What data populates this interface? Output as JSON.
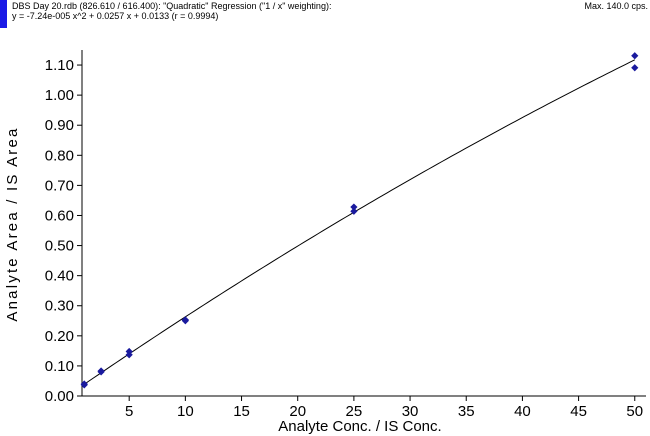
{
  "header": {
    "line1": "DBS Day 20.rdb (826.610 / 616.400): \"Quadratic\" Regression (\"1 / x\" weighting):",
    "line2": "y = -7.24e-005 x^2 + 0.0257 x + 0.0133 (r = 0.9994)",
    "max_label": "Max. 140.0 cps."
  },
  "colors": {
    "accent": "#1a1ae6",
    "points": "#1a1a9e",
    "curve": "#000000"
  },
  "chart_data": {
    "type": "scatter",
    "xlabel": "Analyte Conc. / IS Conc.",
    "ylabel": "Analyte Area / IS Area",
    "xlim": [
      0.8,
      51
    ],
    "ylim": [
      0,
      1.15
    ],
    "x_ticks": [
      5,
      10,
      15,
      20,
      25,
      30,
      35,
      40,
      45,
      50
    ],
    "x_tick_labels": [
      "5",
      "10",
      "15",
      "20",
      "25",
      "30",
      "35",
      "40",
      "45",
      "50"
    ],
    "y_ticks": [
      0,
      0.1,
      0.2,
      0.3,
      0.4,
      0.5,
      0.6,
      0.7,
      0.8,
      0.9,
      1.0,
      1.1
    ],
    "y_tick_labels": [
      "0.00",
      "0.10",
      "0.20",
      "0.30",
      "0.40",
      "0.50",
      "0.60",
      "0.70",
      "0.80",
      "0.90",
      "1.00",
      "1.10"
    ],
    "grid": false,
    "series": [
      {
        "values": [
          [
            1,
            0.037
          ],
          [
            1,
            0.04
          ],
          [
            2.5,
            0.08
          ],
          [
            2.5,
            0.083
          ],
          [
            5,
            0.137
          ],
          [
            5,
            0.148
          ],
          [
            10,
            0.25
          ],
          [
            10,
            0.253
          ],
          [
            25,
            0.614
          ],
          [
            25,
            0.628
          ],
          [
            50,
            1.091
          ],
          [
            50,
            1.131
          ]
        ]
      }
    ],
    "fit": {
      "type": "quadratic",
      "a": -7.24e-05,
      "b": 0.0257,
      "c": 0.0133,
      "x_range": [
        1,
        50
      ]
    }
  }
}
